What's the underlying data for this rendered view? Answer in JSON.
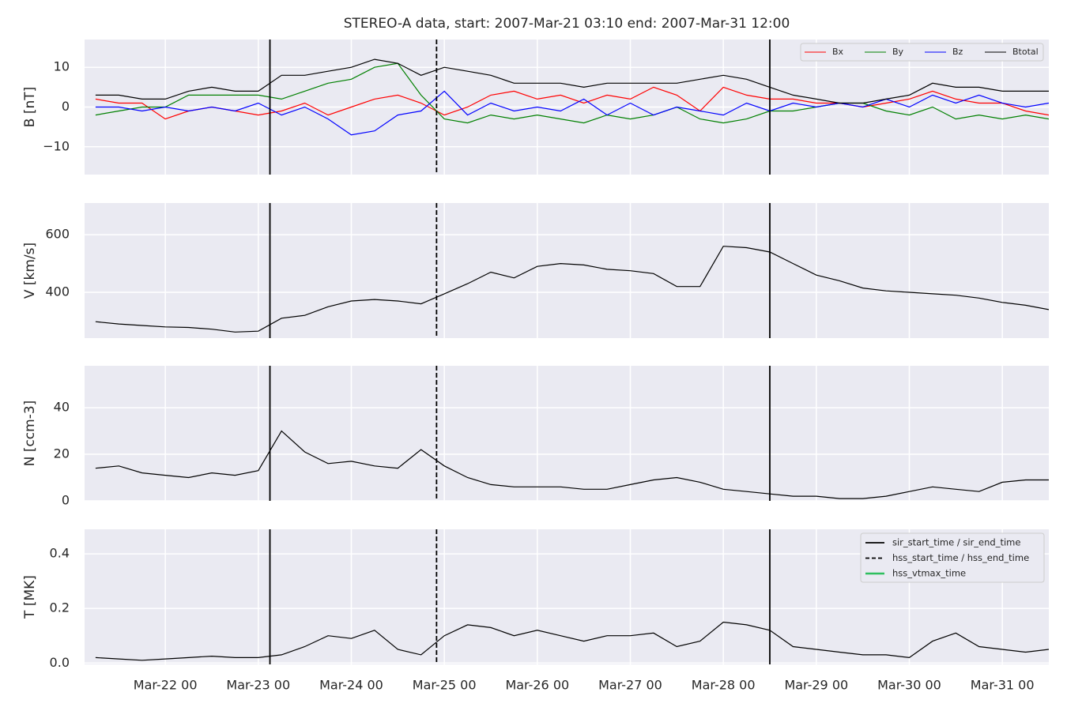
{
  "title": "STEREO-A data, start: 2007-Mar-21 03:10  end: 2007-Mar-31 12:00",
  "xlim": [
    "Mar-21 03:10",
    "Mar-31 12:00"
  ],
  "xticks": [
    "Mar-22 00",
    "Mar-23 00",
    "Mar-24 00",
    "Mar-25 00",
    "Mar-26 00",
    "Mar-27 00",
    "Mar-28 00",
    "Mar-29 00",
    "Mar-30 00",
    "Mar-31 00"
  ],
  "x": [
    "Mar-21 06",
    "Mar-21 12",
    "Mar-21 18",
    "Mar-22 00",
    "Mar-22 06",
    "Mar-22 12",
    "Mar-22 18",
    "Mar-23 00",
    "Mar-23 06",
    "Mar-23 12",
    "Mar-23 18",
    "Mar-24 00",
    "Mar-24 06",
    "Mar-24 12",
    "Mar-24 18",
    "Mar-25 00",
    "Mar-25 06",
    "Mar-25 12",
    "Mar-25 18",
    "Mar-26 00",
    "Mar-26 06",
    "Mar-26 12",
    "Mar-26 18",
    "Mar-27 00",
    "Mar-27 06",
    "Mar-27 12",
    "Mar-27 18",
    "Mar-28 00",
    "Mar-28 06",
    "Mar-28 12",
    "Mar-28 18",
    "Mar-29 00",
    "Mar-29 06",
    "Mar-29 12",
    "Mar-29 18",
    "Mar-30 00",
    "Mar-30 06",
    "Mar-30 12",
    "Mar-30 18",
    "Mar-31 00",
    "Mar-31 06",
    "Mar-31 12"
  ],
  "events": [
    {
      "name": "sir_start_time / sir_end_time",
      "style": "solid",
      "color": "#000000",
      "times": [
        "Mar-23 03",
        "Mar-28 12"
      ]
    },
    {
      "name": "hss_start_time / hss_end_time",
      "style": "dashed",
      "color": "#000000",
      "times": [
        "Mar-24 22"
      ]
    },
    {
      "name": "hss_vtmax_time",
      "style": "solid",
      "color": "#2fbf5f",
      "times": []
    }
  ],
  "chart_data": [
    {
      "type": "line",
      "ylabel": "B [nT]",
      "ylim": [
        -17,
        17
      ],
      "yticks": [
        {
          "value": -10,
          "label": "−10"
        },
        0,
        10
      ],
      "grid": true,
      "legend": "upper-right-row",
      "series": [
        {
          "name": "Bx",
          "color": "#ff0000",
          "values": [
            2,
            1,
            1,
            -3,
            -1,
            0,
            -1,
            -2,
            -1,
            1,
            -2,
            0,
            2,
            3,
            1,
            -2,
            0,
            3,
            4,
            2,
            3,
            1,
            3,
            2,
            5,
            3,
            -1,
            5,
            3,
            2,
            2,
            1,
            1,
            0,
            1,
            2,
            4,
            2,
            1,
            1,
            -1,
            -2
          ]
        },
        {
          "name": "By",
          "color": "#008000",
          "values": [
            -2,
            -1,
            0,
            0,
            3,
            3,
            3,
            3,
            2,
            4,
            6,
            7,
            10,
            11,
            3,
            -3,
            -4,
            -2,
            -3,
            -2,
            -3,
            -4,
            -2,
            -3,
            -2,
            0,
            -3,
            -4,
            -3,
            -1,
            -1,
            0,
            1,
            1,
            -1,
            -2,
            0,
            -3,
            -2,
            -3,
            -2,
            -3
          ]
        },
        {
          "name": "Bz",
          "color": "#0000ff",
          "values": [
            0,
            0,
            -1,
            0,
            -1,
            0,
            -1,
            1,
            -2,
            0,
            -3,
            -7,
            -6,
            -2,
            -1,
            4,
            -2,
            1,
            -1,
            0,
            -1,
            2,
            -2,
            1,
            -2,
            0,
            -1,
            -2,
            1,
            -1,
            1,
            0,
            1,
            0,
            2,
            0,
            3,
            1,
            3,
            1,
            0,
            1
          ]
        },
        {
          "name": "Btotal",
          "color": "#000000",
          "values": [
            3,
            3,
            2,
            2,
            4,
            5,
            4,
            4,
            8,
            8,
            9,
            10,
            12,
            11,
            8,
            10,
            9,
            8,
            6,
            6,
            6,
            5,
            6,
            6,
            6,
            6,
            7,
            8,
            7,
            5,
            3,
            2,
            1,
            1,
            2,
            3,
            6,
            5,
            5,
            4,
            4,
            4
          ]
        }
      ]
    },
    {
      "type": "line",
      "ylabel": "V [km/s]",
      "ylim": [
        241,
        710
      ],
      "yticks": [
        400,
        600
      ],
      "grid": true,
      "series": [
        {
          "color": "#000000",
          "values": [
            298,
            290,
            285,
            280,
            278,
            272,
            262,
            265,
            310,
            320,
            350,
            370,
            375,
            370,
            360,
            395,
            430,
            470,
            450,
            490,
            500,
            495,
            480,
            475,
            465,
            420,
            420,
            560,
            555,
            540,
            500,
            460,
            440,
            415,
            405,
            400,
            395,
            390,
            380,
            365,
            355,
            340
          ]
        }
      ]
    },
    {
      "type": "line",
      "ylabel": "N [ccm-3]",
      "ylim": [
        0,
        58
      ],
      "yticks": [
        0,
        20,
        40
      ],
      "grid": true,
      "series": [
        {
          "color": "#000000",
          "values": [
            14,
            15,
            12,
            11,
            10,
            12,
            11,
            13,
            30,
            21,
            16,
            17,
            15,
            14,
            22,
            15,
            10,
            7,
            6,
            6,
            6,
            5,
            5,
            7,
            9,
            10,
            8,
            5,
            4,
            3,
            2,
            2,
            1,
            1,
            2,
            4,
            6,
            5,
            4,
            8,
            9,
            9
          ]
        }
      ]
    },
    {
      "type": "line",
      "ylabel": "T [MK]",
      "ylim": [
        -0.005,
        0.49
      ],
      "yticks": [
        {
          "value": 0,
          "label": "0.0"
        },
        0.2,
        0.4
      ],
      "grid": true,
      "legend": "upper-right-events",
      "show_xticks": true,
      "series": [
        {
          "color": "#000000",
          "values": [
            0.02,
            0.015,
            0.01,
            0.015,
            0.02,
            0.025,
            0.02,
            0.02,
            0.03,
            0.06,
            0.1,
            0.09,
            0.12,
            0.05,
            0.03,
            0.1,
            0.14,
            0.13,
            0.1,
            0.12,
            0.1,
            0.08,
            0.1,
            0.1,
            0.11,
            0.06,
            0.08,
            0.15,
            0.14,
            0.12,
            0.06,
            0.05,
            0.04,
            0.03,
            0.03,
            0.02,
            0.08,
            0.11,
            0.06,
            0.05,
            0.04,
            0.05
          ]
        }
      ]
    }
  ]
}
